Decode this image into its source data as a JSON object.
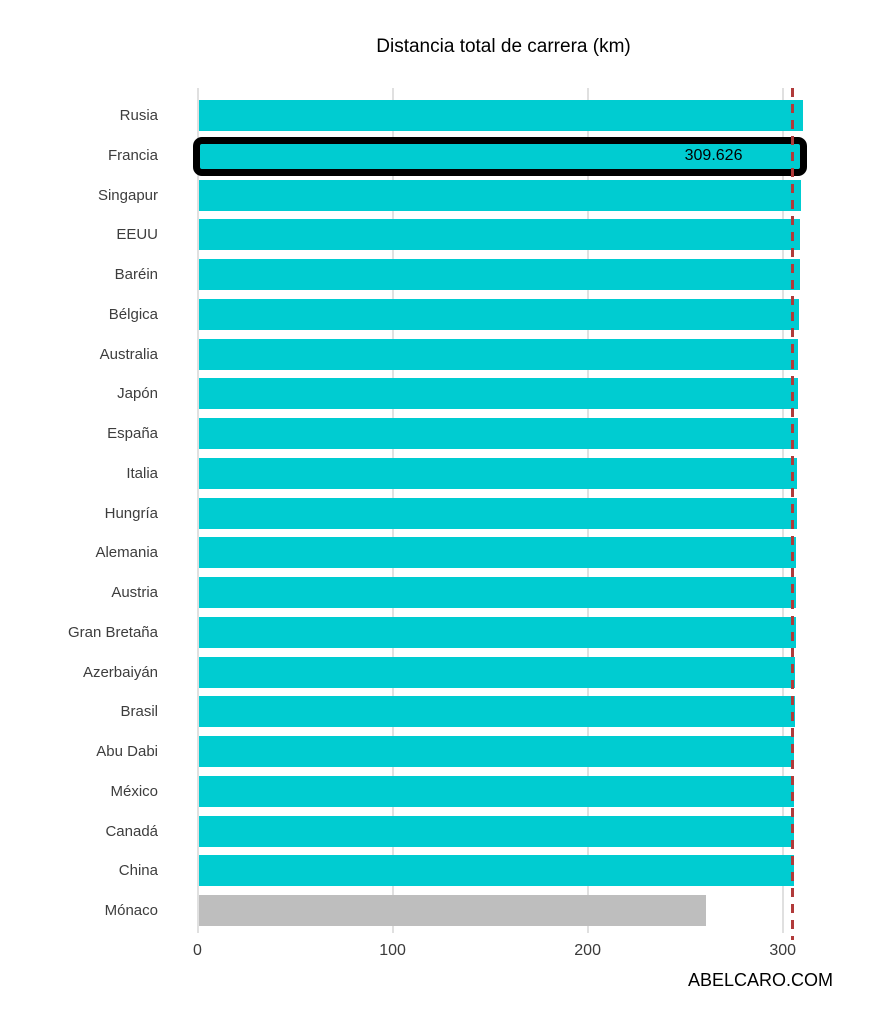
{
  "page": {
    "watermark": "ABELCARO.COM"
  },
  "chart_data": {
    "type": "bar",
    "orientation": "horizontal",
    "title": "Distancia total de carrera (km)",
    "categories": [
      "Rusia",
      "Francia",
      "Singapur",
      "EEUU",
      "Baréin",
      "Bélgica",
      "Australia",
      "Japón",
      "España",
      "Italia",
      "Hungría",
      "Alemania",
      "Austria",
      "Gran Bretaña",
      "Azerbaiyán",
      "Brasil",
      "Abu Dabi",
      "México",
      "Canadá",
      "China",
      "Mónaco"
    ],
    "values": [
      309.745,
      309.626,
      308.706,
      308.405,
      308.238,
      308.052,
      307.574,
      307.471,
      307.104,
      306.72,
      306.63,
      306.458,
      306.452,
      306.198,
      306.049,
      305.909,
      305.355,
      305.354,
      305.27,
      305.066,
      260.286
    ],
    "bar_colors": [
      "#00ccd1",
      "#00ccd1",
      "#00ccd1",
      "#00ccd1",
      "#00ccd1",
      "#00ccd1",
      "#00ccd1",
      "#00ccd1",
      "#00ccd1",
      "#00ccd1",
      "#00ccd1",
      "#00ccd1",
      "#00ccd1",
      "#00ccd1",
      "#00ccd1",
      "#00ccd1",
      "#00ccd1",
      "#00ccd1",
      "#00ccd1",
      "#00ccd1",
      "#bebebe"
    ],
    "highlight": {
      "category": "Francia",
      "index": 1,
      "value_label": "309.626",
      "frame_color": "#000000"
    },
    "reference_line": {
      "value": 305,
      "color": "#b13a3a",
      "style": "dashed"
    },
    "x_ticks": [
      0,
      100,
      200,
      300
    ],
    "xlim": [
      0,
      335
    ],
    "ylabel": "",
    "xlabel": "",
    "grid": true,
    "legend": "none"
  }
}
